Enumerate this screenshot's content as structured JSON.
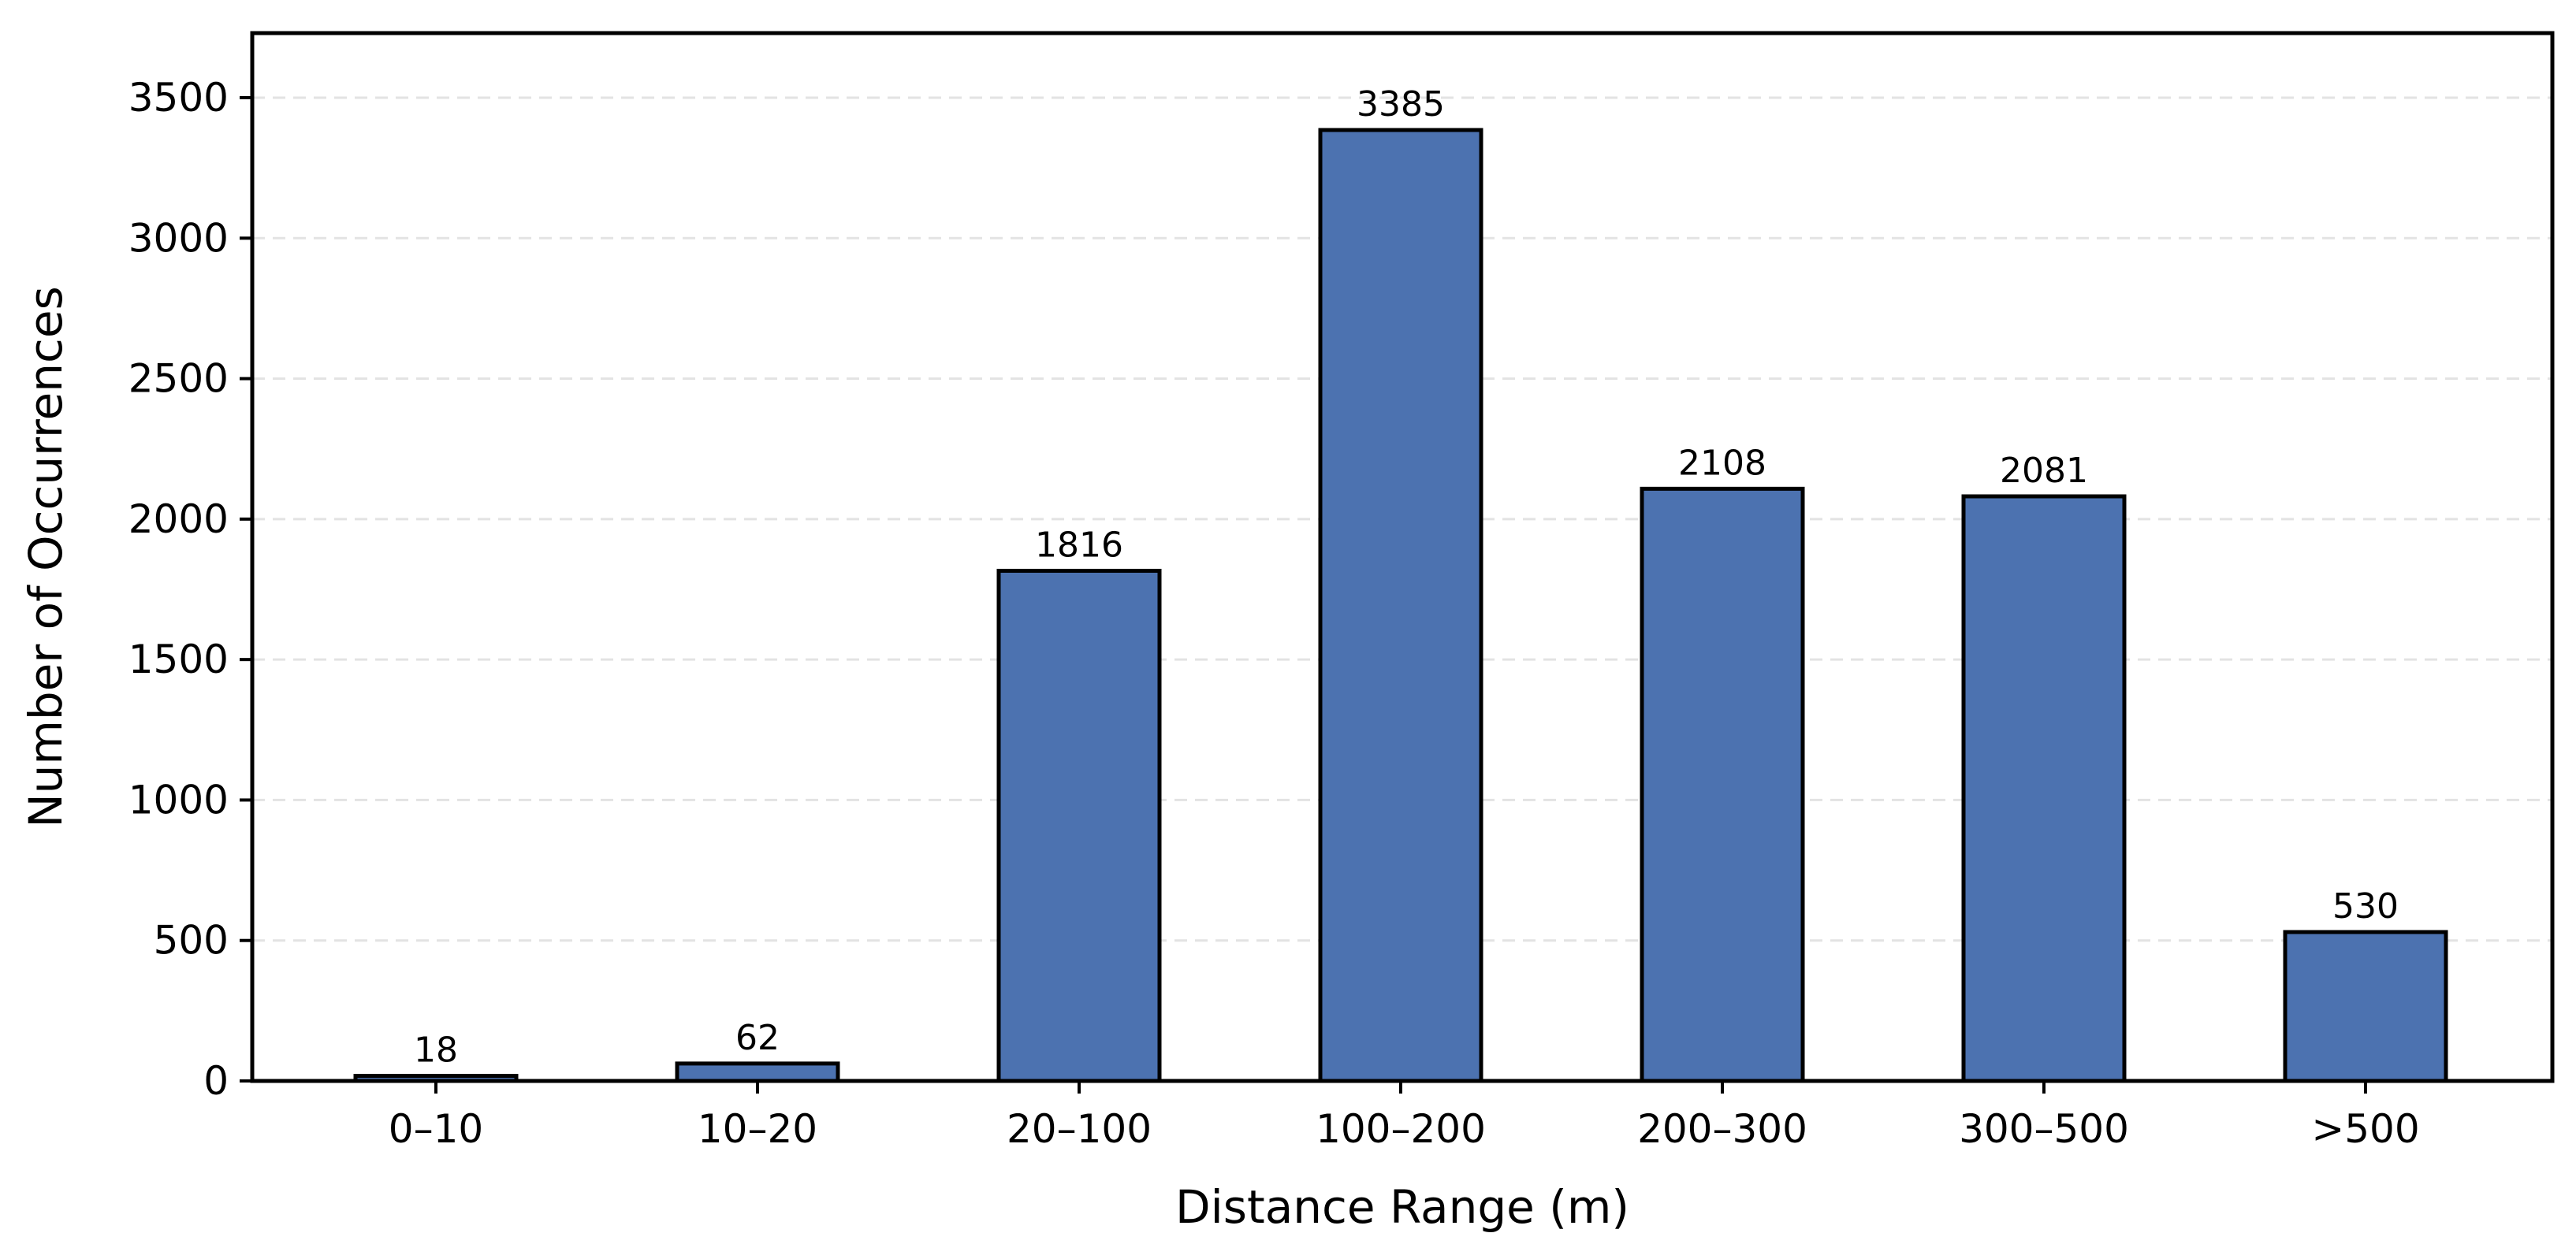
{
  "chart_data": {
    "type": "bar",
    "categories": [
      "0–10",
      "10–20",
      "20–100",
      "100–200",
      "200–300",
      "300–500",
      ">500"
    ],
    "values": [
      18,
      62,
      1816,
      3385,
      2108,
      2081,
      530
    ],
    "data_labels": [
      "18",
      "62",
      "1816",
      "3385",
      "2108",
      "2081",
      "530"
    ],
    "title": "",
    "xlabel": "Distance Range (m)",
    "ylabel": "Number of Occurrences",
    "ylim": [
      0,
      3730
    ],
    "yticks": [
      0,
      500,
      1000,
      1500,
      2000,
      2500,
      3000,
      3500
    ],
    "grid": "y-dashed",
    "bar_color": "#4c72b0",
    "edge_color": "#000000",
    "legend": "none"
  }
}
